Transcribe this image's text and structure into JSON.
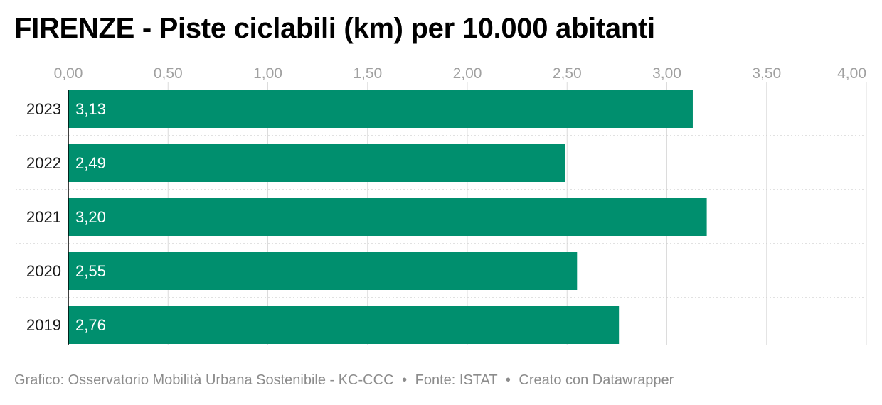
{
  "title": "FIRENZE - Piste ciclabili (km) per 10.000 abitanti",
  "footer": {
    "credit": "Grafico: Osservatorio Mobilità Urbana Sostenibile - KC-CCC",
    "source": "Fonte: ISTAT",
    "tool": "Creato con Datawrapper",
    "separator": "•"
  },
  "colors": {
    "bar": "#008f6e",
    "grid": "#dcdcdc",
    "tick_text": "#a0a0a0",
    "axis_line": "#000000"
  },
  "chart_data": {
    "type": "bar",
    "orientation": "horizontal",
    "categories": [
      "2023",
      "2022",
      "2021",
      "2020",
      "2019"
    ],
    "values": [
      3.13,
      2.49,
      3.2,
      2.55,
      2.76
    ],
    "value_labels": [
      "3,13",
      "2,49",
      "3,20",
      "2,55",
      "2,76"
    ],
    "xlim": [
      0,
      4
    ],
    "x_ticks": [
      0,
      0.5,
      1,
      1.5,
      2,
      2.5,
      3,
      3.5,
      4
    ],
    "x_tick_labels": [
      "0,00",
      "0,50",
      "1,00",
      "1,50",
      "2,00",
      "2,50",
      "3,00",
      "3,50",
      "4,00"
    ],
    "x_axis_position": "top",
    "grid": true,
    "xlabel": "",
    "ylabel": ""
  }
}
